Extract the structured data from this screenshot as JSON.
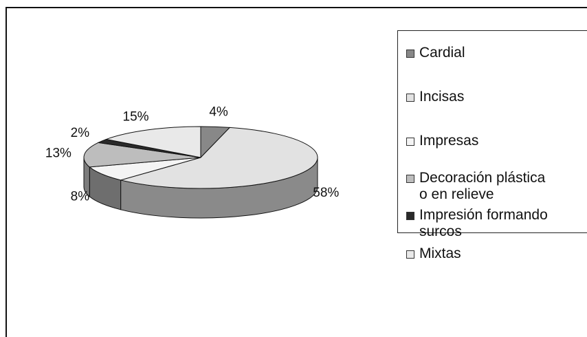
{
  "chart_data": {
    "type": "pie",
    "three_d": true,
    "categories": [
      "Cardial",
      "Incisas",
      "Impresas",
      "Decoración plástica o en relieve",
      "Impresión formando surcos",
      "Mixtas"
    ],
    "values": [
      4,
      58,
      8,
      13,
      2,
      15
    ],
    "data_labels": [
      "4%",
      "58%",
      "8%",
      "13%",
      "2%",
      "15%"
    ],
    "colors": [
      "#888888",
      "#e2e2e2",
      "#f4f4f4",
      "#bdbdbd",
      "#2a2a2a",
      "#e9e9e9"
    ],
    "side_colors": [
      "#7a7a7a",
      "#8a8a8a",
      "#6e6e6e",
      "#7c7c7c",
      "#1e1e1e",
      "#7f7f7f"
    ],
    "legend_position": "right",
    "title": ""
  },
  "legend": {
    "items": [
      {
        "label": "Cardial",
        "color": "#888888"
      },
      {
        "label": "Incisas",
        "color": "#e2e2e2"
      },
      {
        "label": "Impresas",
        "color": "#f4f4f4"
      },
      {
        "label": "Decoración plástica\no en relieve",
        "color": "#bdbdbd"
      },
      {
        "label": "Impresión formando\nsurcos",
        "color": "#2a2a2a"
      },
      {
        "label": "Mixtas",
        "color": "#e9e9e9"
      }
    ]
  }
}
